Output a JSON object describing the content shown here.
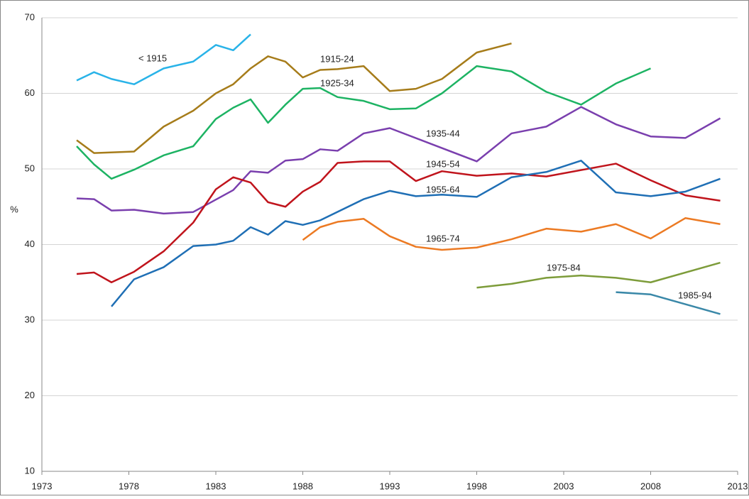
{
  "chart_data": {
    "type": "line",
    "y_label": "%",
    "xlim": [
      1973,
      2013
    ],
    "xticks": [
      1973,
      1978,
      1983,
      1988,
      1993,
      1998,
      2003,
      2008,
      2013
    ],
    "ylim": [
      10,
      70
    ],
    "yticks": [
      10,
      20,
      30,
      40,
      50,
      60,
      70
    ],
    "grid": true,
    "series": [
      {
        "name": "< 1915",
        "color": "#29b3e8",
        "x": [
          1975,
          1976,
          1977,
          1978.3,
          1980,
          1981.7,
          1983,
          1984,
          1985
        ],
        "values": [
          61.7,
          62.8,
          61.9,
          61.2,
          63.3,
          64.2,
          66.4,
          65.7,
          67.8
        ]
      },
      {
        "name": "1915-24",
        "color": "#a67c1a",
        "x": [
          1975,
          1976,
          1978.3,
          1980,
          1981.7,
          1983,
          1984,
          1985,
          1986,
          1987,
          1988,
          1989,
          1990,
          1991.5,
          1993,
          1994.5,
          1996,
          1998,
          2000
        ],
        "values": [
          53.8,
          52.1,
          52.3,
          55.6,
          57.7,
          60.0,
          61.2,
          63.3,
          64.9,
          64.2,
          62.1,
          63.1,
          63.2,
          63.6,
          60.3,
          60.6,
          61.9,
          65.4,
          66.6
        ]
      },
      {
        "name": "1925-34",
        "color": "#1db363",
        "x": [
          1975,
          1976,
          1977,
          1978.3,
          1980,
          1981.7,
          1983,
          1984,
          1985,
          1986,
          1987,
          1988,
          1989,
          1990,
          1991.5,
          1993,
          1994.5,
          1996,
          1998,
          2000,
          2002,
          2004,
          2006,
          2008
        ],
        "values": [
          53.0,
          50.6,
          48.7,
          49.9,
          51.8,
          53.0,
          56.6,
          58.1,
          59.2,
          56.1,
          58.5,
          60.6,
          60.7,
          59.5,
          59.0,
          57.9,
          58.0,
          60.0,
          63.6,
          62.9,
          60.2,
          58.5,
          61.3,
          63.3
        ]
      },
      {
        "name": "1935-44",
        "color": "#7a3fae",
        "x": [
          1975,
          1976,
          1977,
          1978.3,
          1980,
          1981.7,
          1984,
          1985,
          1986,
          1987,
          1988,
          1989,
          1990,
          1991.5,
          1993,
          1998,
          2000,
          2002,
          2004,
          2006,
          2008,
          2010,
          2012
        ],
        "values": [
          46.1,
          46.0,
          44.5,
          44.6,
          44.1,
          44.3,
          47.2,
          49.7,
          49.5,
          51.1,
          51.3,
          52.6,
          52.4,
          54.7,
          55.4,
          51.0,
          54.7,
          55.6,
          58.2,
          55.9,
          54.3,
          54.1,
          56.7
        ]
      },
      {
        "name": "1945-54",
        "color": "#c0141c",
        "x": [
          1975,
          1976,
          1977,
          1978.3,
          1980,
          1981.7,
          1983,
          1984,
          1985,
          1986,
          1987,
          1988,
          1989,
          1990,
          1991.5,
          1993,
          1994.5,
          1996,
          1998,
          2000,
          2002,
          2006,
          2008,
          2010,
          2012
        ],
        "values": [
          36.1,
          36.3,
          35.0,
          36.4,
          39.1,
          42.9,
          47.3,
          48.9,
          48.2,
          45.6,
          45.0,
          47.0,
          48.3,
          50.8,
          51.0,
          51.0,
          48.4,
          49.7,
          49.1,
          49.4,
          49.0,
          50.7,
          48.5,
          46.5,
          45.8
        ]
      },
      {
        "name": "1955-64",
        "color": "#1f6fb5",
        "x": [
          1977,
          1978.3,
          1980,
          1981.7,
          1983,
          1984,
          1985,
          1986,
          1987,
          1988,
          1989,
          1991.5,
          1993,
          1994.5,
          1996,
          1998,
          2000,
          2002,
          2004,
          2006,
          2008,
          2010,
          2012
        ],
        "values": [
          31.8,
          35.4,
          37.0,
          39.8,
          40.0,
          40.5,
          42.3,
          41.3,
          43.1,
          42.6,
          43.2,
          46.0,
          47.1,
          46.4,
          46.6,
          46.3,
          48.9,
          49.6,
          51.1,
          46.9,
          46.4,
          47.0,
          48.7
        ]
      },
      {
        "name": "1965-74",
        "color": "#ec7a23",
        "x": [
          1988,
          1989,
          1990,
          1991.5,
          1993,
          1994.5,
          1996,
          1998,
          2000,
          2002,
          2004,
          2006,
          2008,
          2010,
          2012
        ],
        "values": [
          40.6,
          42.3,
          43.0,
          43.4,
          41.1,
          39.7,
          39.3,
          39.6,
          40.7,
          42.1,
          41.7,
          42.7,
          40.8,
          43.5,
          42.7
        ]
      },
      {
        "name": "1975-84",
        "color": "#7d9c3a",
        "x": [
          1998,
          2000,
          2002,
          2004,
          2006,
          2008,
          2012
        ],
        "values": [
          34.3,
          34.8,
          35.6,
          35.9,
          35.6,
          35.0,
          37.6
        ]
      },
      {
        "name": "1985-94",
        "color": "#3a88a8",
        "x": [
          2006,
          2008,
          2012
        ],
        "values": [
          33.7,
          33.4,
          30.8
        ]
      }
    ]
  }
}
